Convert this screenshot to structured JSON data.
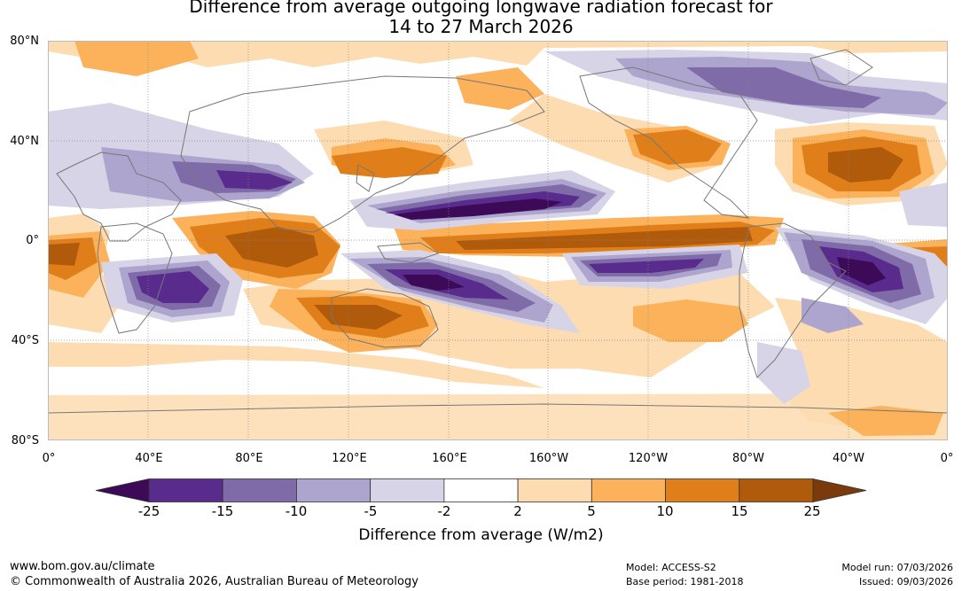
{
  "title": {
    "line1": "Difference from average outgoing longwave radiation forecast for",
    "line2": "14 to 27 March 2026"
  },
  "map": {
    "lat_labels": [
      "80°N",
      "40°N",
      "0°",
      "40°S",
      "80°S"
    ],
    "lon_labels": [
      "0°",
      "40°E",
      "80°E",
      "120°E",
      "160°E",
      "160°W",
      "120°W",
      "80°W",
      "40°W",
      "0°"
    ]
  },
  "colorbar": {
    "title": "Difference from average (W/m2)",
    "tick_labels": [
      "-25",
      "-15",
      "-10",
      "-5",
      "-2",
      "2",
      "5",
      "10",
      "15",
      "25"
    ],
    "colors": [
      "#3c0a57",
      "#582b8d",
      "#7f6ba8",
      "#aea5ce",
      "#d7d4e8",
      "#ffffff",
      "#fddcb1",
      "#fbb25a",
      "#e07f1a",
      "#b05a0c",
      "#7b3a0b"
    ]
  },
  "footer": {
    "website": "www.bom.gov.au/climate",
    "copyright": "© Commonwealth of Australia 2026, Australian Bureau of Meteorology",
    "model": "Model: ACCESS-S2",
    "base_period": "Base period: 1981-2018",
    "model_run": "Model run: 07/03/2026",
    "issued": "Issued: 09/03/2026"
  }
}
